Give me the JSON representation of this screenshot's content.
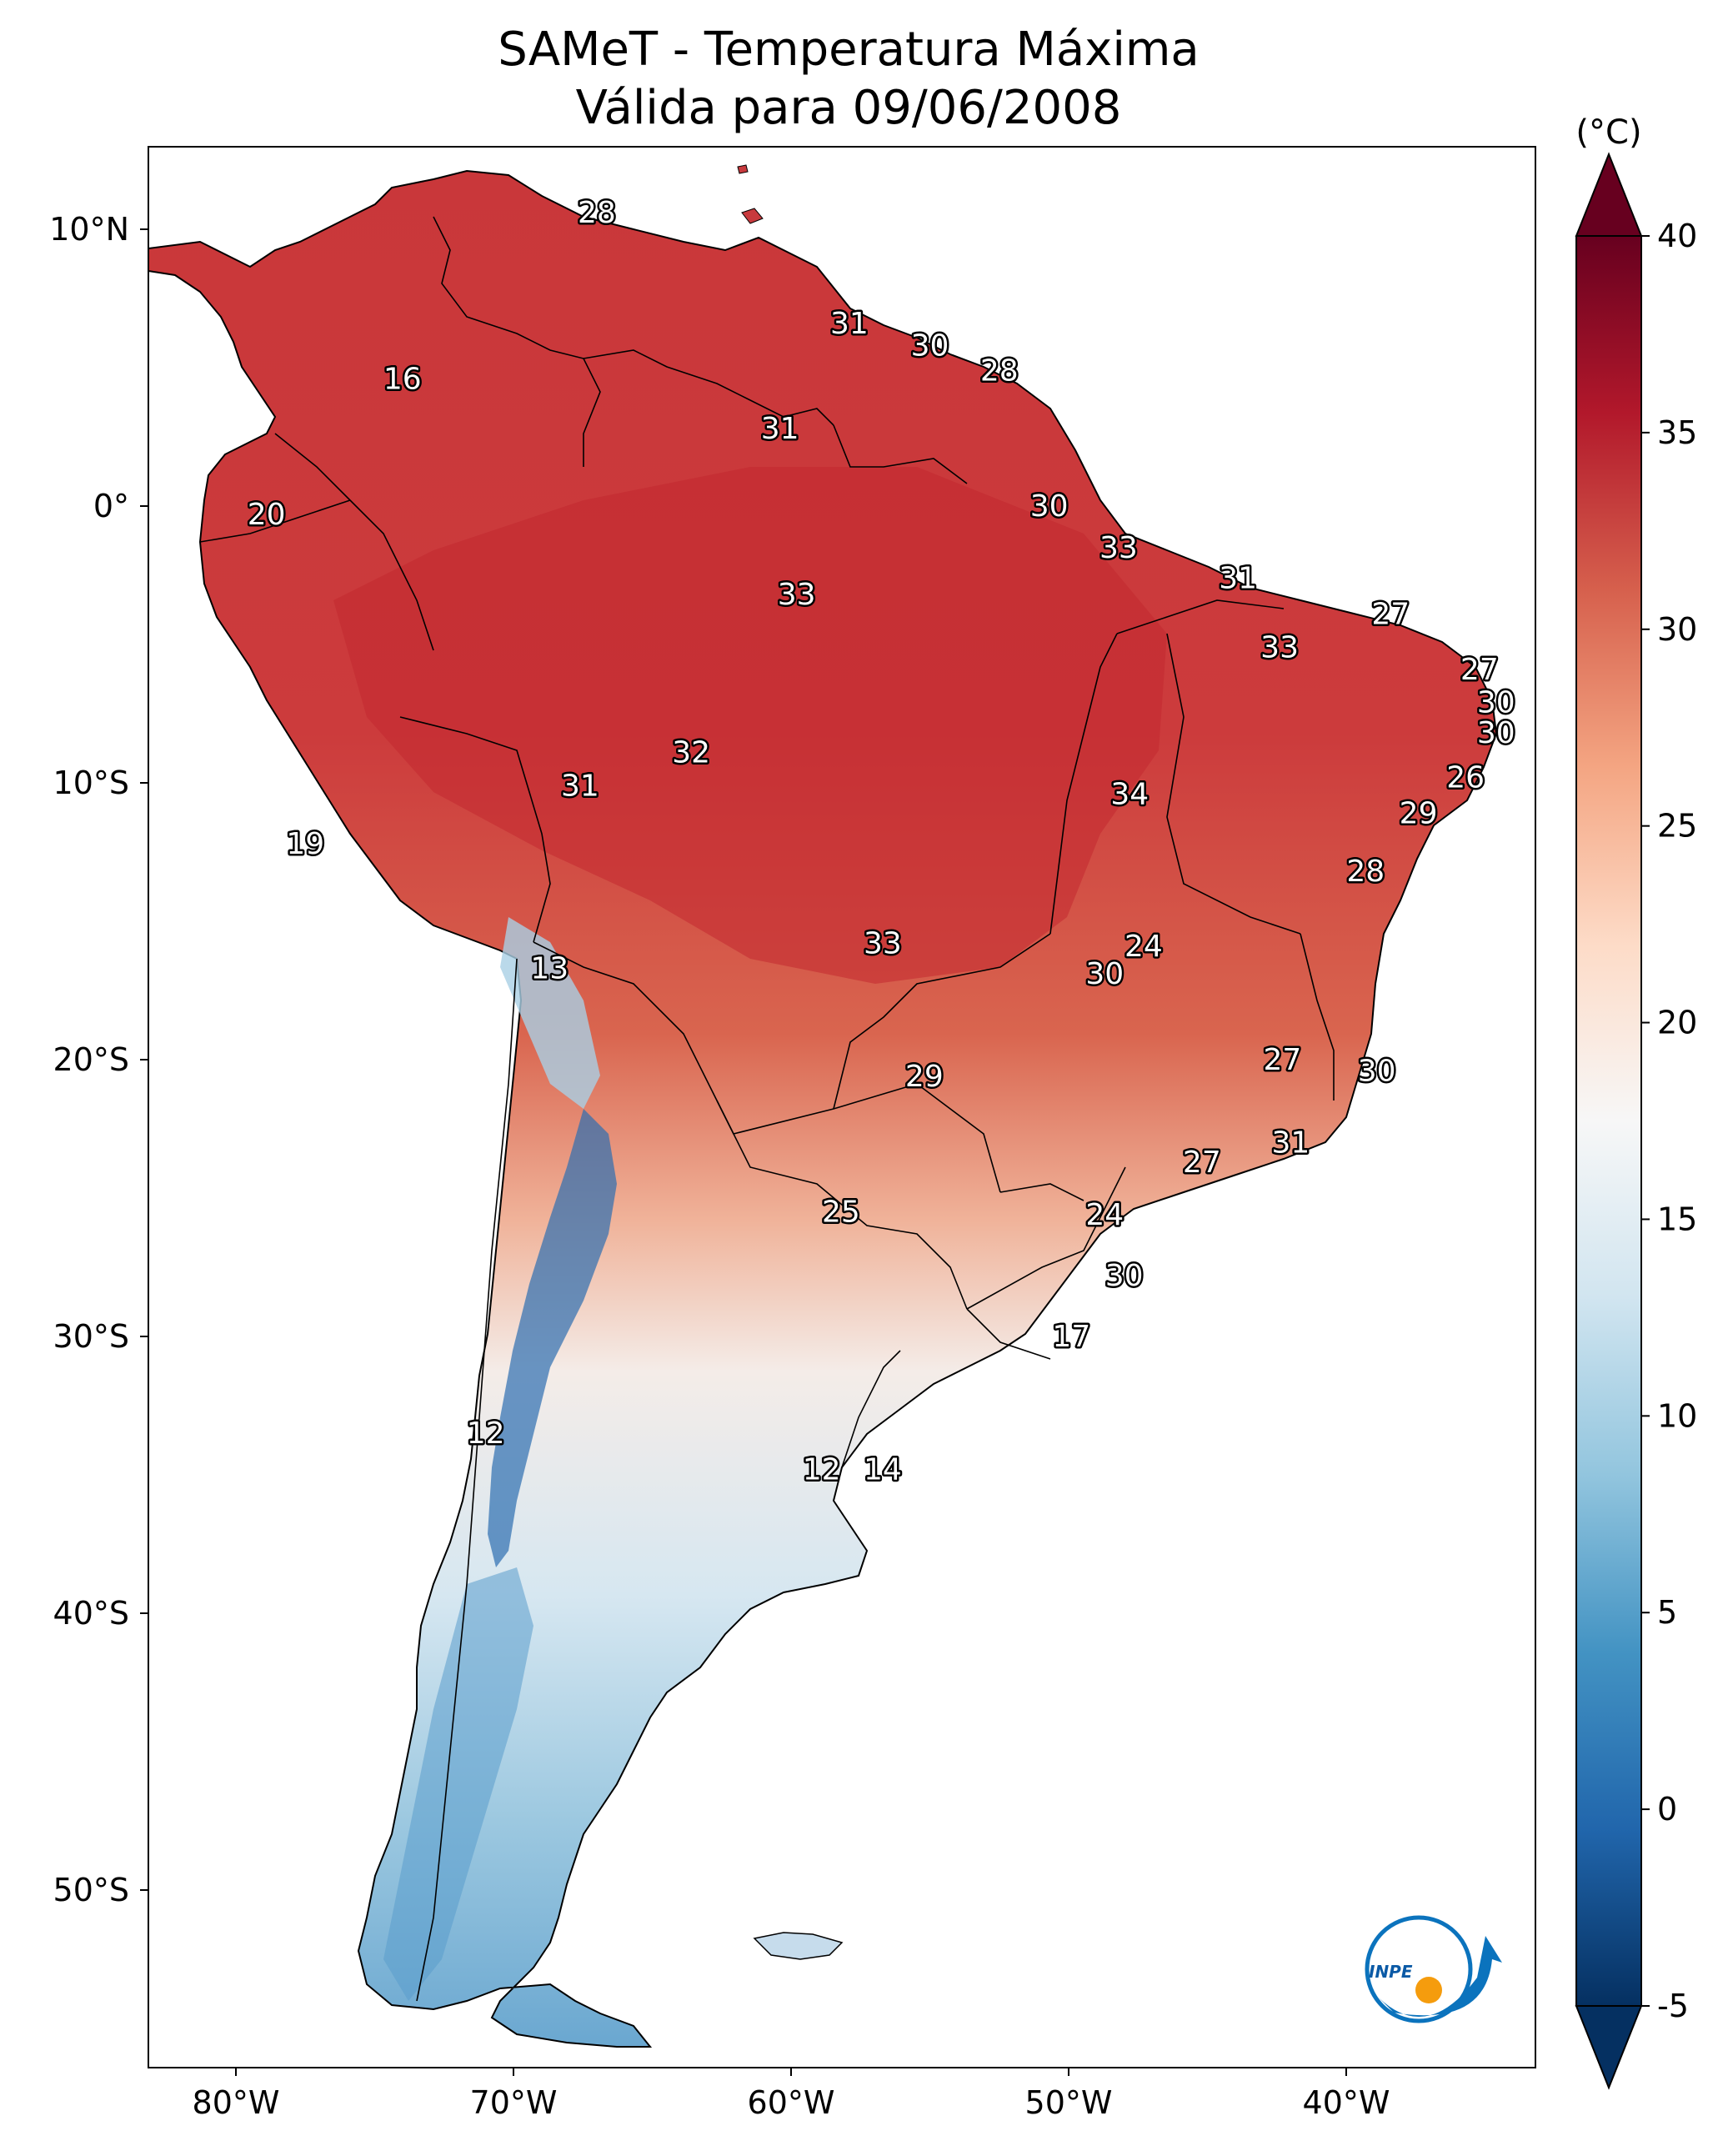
{
  "title": {
    "line1": "SAMeT - Temperatura Máxima",
    "line2": "Válida para 09/06/2008"
  },
  "colorbar": {
    "unit": "(°C)",
    "ticks": [
      "40",
      "35",
      "30",
      "25",
      "20",
      "15",
      "10",
      "5",
      "0",
      "-5"
    ],
    "range": [
      -5,
      40
    ],
    "colormap": "RdBu_r",
    "extend": "both"
  },
  "axes": {
    "lon_ticks": [
      "80°W",
      "70°W",
      "60°W",
      "50°W",
      "40°W"
    ],
    "lat_ticks": [
      "10°N",
      "0°",
      "10°S",
      "20°S",
      "30°S",
      "40°S",
      "50°S"
    ]
  },
  "map_labels": [
    {
      "text": "28",
      "lon": -67.0,
      "lat": 10.6
    },
    {
      "text": "16",
      "lon": -74.0,
      "lat": 4.6
    },
    {
      "text": "31",
      "lon": -57.9,
      "lat": 6.6
    },
    {
      "text": "30",
      "lon": -55.0,
      "lat": 5.8
    },
    {
      "text": "28",
      "lon": -52.5,
      "lat": 4.9
    },
    {
      "text": "31",
      "lon": -60.4,
      "lat": 2.8
    },
    {
      "text": "20",
      "lon": -78.9,
      "lat": -0.3
    },
    {
      "text": "30",
      "lon": -50.7,
      "lat": 0.0
    },
    {
      "text": "33",
      "lon": -48.2,
      "lat": -1.5
    },
    {
      "text": "31",
      "lon": -43.9,
      "lat": -2.6
    },
    {
      "text": "33",
      "lon": -59.8,
      "lat": -3.2
    },
    {
      "text": "27",
      "lon": -38.4,
      "lat": -3.9
    },
    {
      "text": "33",
      "lon": -42.4,
      "lat": -5.1
    },
    {
      "text": "27",
      "lon": -35.2,
      "lat": -5.9
    },
    {
      "text": "30",
      "lon": -34.6,
      "lat": -7.1
    },
    {
      "text": "30",
      "lon": -34.6,
      "lat": -8.2
    },
    {
      "text": "32",
      "lon": -63.6,
      "lat": -8.9
    },
    {
      "text": "26",
      "lon": -35.7,
      "lat": -9.8
    },
    {
      "text": "31",
      "lon": -67.6,
      "lat": -10.1
    },
    {
      "text": "34",
      "lon": -47.8,
      "lat": -10.4
    },
    {
      "text": "29",
      "lon": -37.4,
      "lat": -11.1
    },
    {
      "text": "19",
      "lon": -77.5,
      "lat": -12.2
    },
    {
      "text": "28",
      "lon": -39.3,
      "lat": -13.2
    },
    {
      "text": "33",
      "lon": -56.7,
      "lat": -15.8
    },
    {
      "text": "24",
      "lon": -47.3,
      "lat": -15.9
    },
    {
      "text": "13",
      "lon": -68.7,
      "lat": -16.7
    },
    {
      "text": "30",
      "lon": -48.7,
      "lat": -16.9
    },
    {
      "text": "27",
      "lon": -42.3,
      "lat": -20.0
    },
    {
      "text": "30",
      "lon": -38.9,
      "lat": -20.4
    },
    {
      "text": "29",
      "lon": -55.2,
      "lat": -20.6
    },
    {
      "text": "31",
      "lon": -42.0,
      "lat": -23.0
    },
    {
      "text": "27",
      "lon": -45.2,
      "lat": -23.7
    },
    {
      "text": "25",
      "lon": -58.2,
      "lat": -25.5
    },
    {
      "text": "24",
      "lon": -48.7,
      "lat": -25.6
    },
    {
      "text": "30",
      "lon": -48.0,
      "lat": -27.8
    },
    {
      "text": "17",
      "lon": -49.9,
      "lat": -30.0
    },
    {
      "text": "12",
      "lon": -71.0,
      "lat": -33.5
    },
    {
      "text": "12",
      "lon": -58.9,
      "lat": -34.8
    },
    {
      "text": "14",
      "lon": -56.7,
      "lat": -34.8
    }
  ],
  "logo": {
    "text": "INPE"
  },
  "colors": {
    "very_hot": "#67001f",
    "hot": "#b2182b",
    "warm": "#d6604d",
    "mild_warm": "#f4a582",
    "pale_warm": "#fddbc7",
    "neutral": "#f7f7f7",
    "pale_cool": "#d1e5f0",
    "cool": "#92c5de",
    "cold": "#4393c3",
    "very_cold": "#2166ac",
    "extreme_cold": "#053061"
  }
}
